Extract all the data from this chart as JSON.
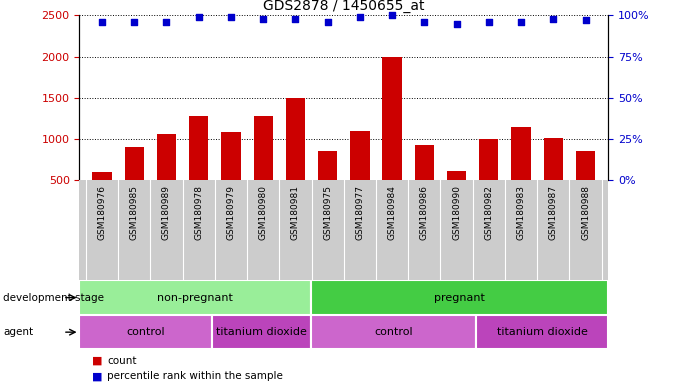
{
  "title": "GDS2878 / 1450655_at",
  "samples": [
    "GSM180976",
    "GSM180985",
    "GSM180989",
    "GSM180978",
    "GSM180979",
    "GSM180980",
    "GSM180981",
    "GSM180975",
    "GSM180977",
    "GSM180984",
    "GSM180986",
    "GSM180990",
    "GSM180982",
    "GSM180983",
    "GSM180987",
    "GSM180988"
  ],
  "counts": [
    600,
    900,
    1060,
    1280,
    1090,
    1275,
    1500,
    860,
    1100,
    2000,
    930,
    620,
    1000,
    1150,
    1010,
    860
  ],
  "percentiles": [
    96,
    96,
    96,
    99,
    99,
    98,
    98,
    96,
    99,
    100,
    96,
    95,
    96,
    96,
    98,
    97
  ],
  "bar_color": "#cc0000",
  "dot_color": "#0000cc",
  "ylim_left": [
    500,
    2500
  ],
  "ylim_right": [
    0,
    100
  ],
  "yticks_left": [
    500,
    1000,
    1500,
    2000,
    2500
  ],
  "yticks_right": [
    0,
    25,
    50,
    75,
    100
  ],
  "yticklabels_right": [
    "0%",
    "25%",
    "50%",
    "75%",
    "100%"
  ],
  "background_color": "#ffffff",
  "stage_groups": [
    {
      "label": "non-pregnant",
      "start": 0,
      "end": 7,
      "color": "#99ee99"
    },
    {
      "label": "pregnant",
      "start": 7,
      "end": 16,
      "color": "#44cc44"
    }
  ],
  "agent_groups": [
    {
      "label": "control",
      "start": 0,
      "end": 4,
      "color": "#cc66cc"
    },
    {
      "label": "titanium dioxide",
      "start": 4,
      "end": 7,
      "color": "#bb44bb"
    },
    {
      "label": "control",
      "start": 7,
      "end": 12,
      "color": "#cc66cc"
    },
    {
      "label": "titanium dioxide",
      "start": 12,
      "end": 16,
      "color": "#bb44bb"
    }
  ],
  "legend_count_label": "count",
  "legend_percentile_label": "percentile rank within the sample",
  "left_axis_color": "#cc0000",
  "right_axis_color": "#0000cc",
  "development_stage_label": "development stage",
  "agent_label": "agent"
}
